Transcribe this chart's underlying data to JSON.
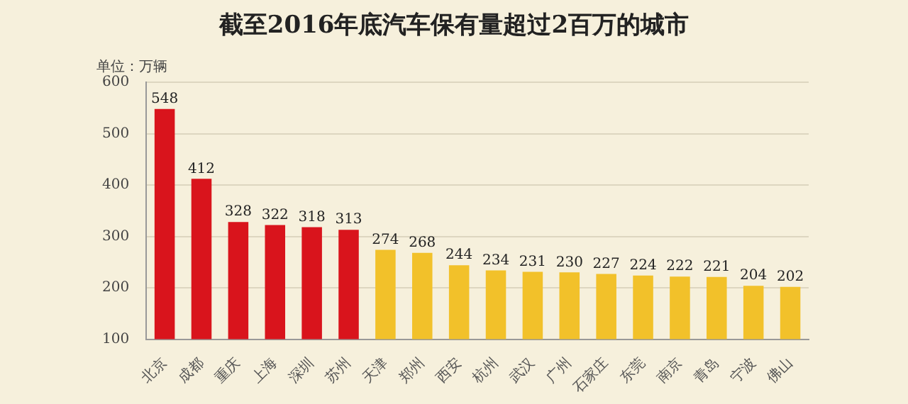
{
  "chart_data": {
    "type": "bar",
    "title": "截至2016年底汽车保有量超过2百万的城市",
    "ylabel": "单位：万辆",
    "categories": [
      "北京",
      "成都",
      "重庆",
      "上海",
      "深圳",
      "苏州",
      "天津",
      "郑州",
      "西安",
      "杭州",
      "武汉",
      "广州",
      "石家庄",
      "东莞",
      "南京",
      "青岛",
      "宁波",
      "佛山"
    ],
    "values": [
      548,
      412,
      328,
      322,
      318,
      313,
      274,
      268,
      244,
      234,
      231,
      230,
      227,
      224,
      222,
      221,
      204,
      202
    ],
    "colors": [
      "#d9141c",
      "#d9141c",
      "#d9141c",
      "#d9141c",
      "#d9141c",
      "#d9141c",
      "#f2c12a",
      "#f2c12a",
      "#f2c12a",
      "#f2c12a",
      "#f2c12a",
      "#f2c12a",
      "#f2c12a",
      "#f2c12a",
      "#f2c12a",
      "#f2c12a",
      "#f2c12a",
      "#f2c12a"
    ],
    "ylim": [
      100,
      600
    ],
    "yticks": [
      100,
      200,
      300,
      400,
      500,
      600
    ],
    "grid": "y",
    "data_labels": true
  }
}
